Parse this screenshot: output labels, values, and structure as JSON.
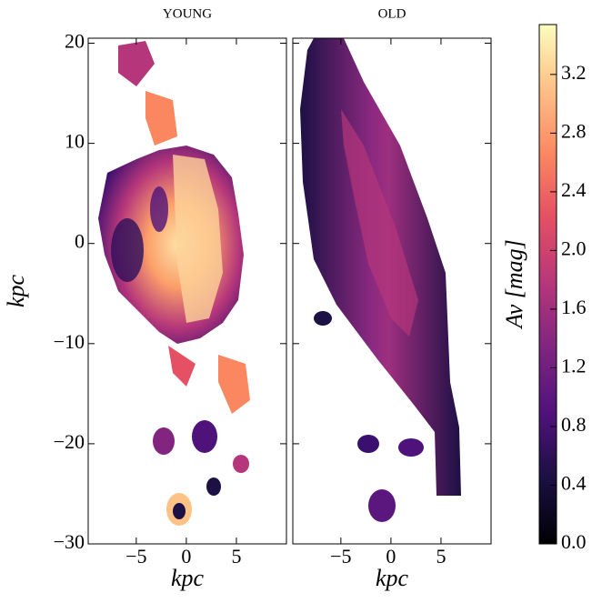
{
  "chart_data": {
    "type": "image",
    "panels": [
      {
        "title": "YOUNG",
        "xlabel": "kpc",
        "xlim": [
          -9.8,
          10
        ],
        "xticks": [
          {
            "value": -5,
            "label": "−5"
          },
          0,
          5
        ]
      },
      {
        "title": "OLD",
        "xlabel": "kpc",
        "xlim": [
          -9.8,
          10
        ],
        "xticks": [
          {
            "value": -5,
            "label": "−5"
          },
          0,
          5
        ]
      }
    ],
    "ylabel": "kpc",
    "ylim": [
      -30,
      20.5
    ],
    "yticks": [
      {
        "value": -30,
        "label": "−30"
      },
      {
        "value": -20,
        "label": "−20"
      },
      {
        "value": -10,
        "label": "−10"
      },
      0,
      10,
      20
    ],
    "colorbar": {
      "label": "Av [mag]",
      "colormap": "magma",
      "lim": [
        0,
        3.54
      ],
      "ticks": [
        {
          "value": 0,
          "label": "0.0"
        },
        {
          "value": 0.4,
          "label": "0.4"
        },
        {
          "value": 0.8,
          "label": "0.8"
        },
        {
          "value": 1.2,
          "label": "1.2"
        },
        {
          "value": 1.6,
          "label": "1.6"
        },
        {
          "value": 2.0,
          "label": "2.0"
        },
        {
          "value": 2.4,
          "label": "2.4"
        },
        {
          "value": 2.8,
          "label": "2.8"
        },
        {
          "value": 3.2,
          "label": "3.2"
        }
      ]
    }
  }
}
